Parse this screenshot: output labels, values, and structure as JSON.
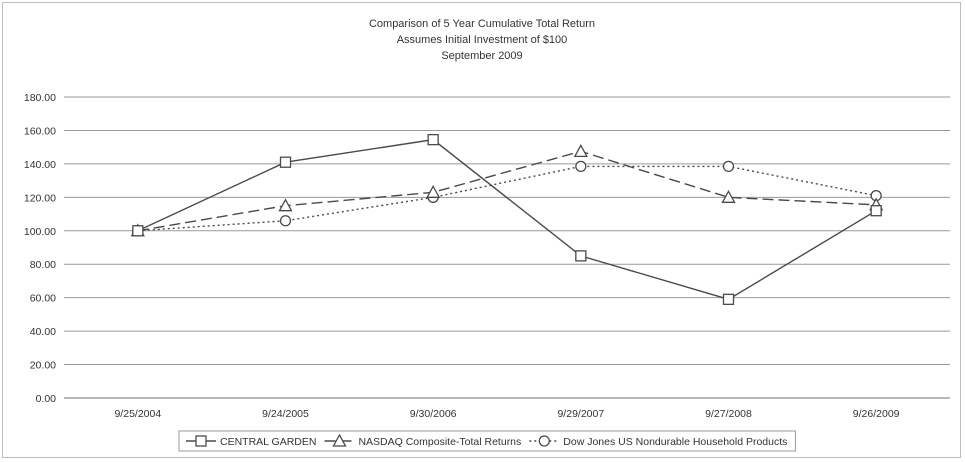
{
  "chart_data": {
    "type": "line",
    "title": [
      "Comparison of 5 Year Cumulative Total Return",
      "Assumes Initial Investment of $100",
      "September 2009"
    ],
    "categories": [
      "9/25/2004",
      "9/24/2005",
      "9/30/2006",
      "9/29/2007",
      "9/27/2008",
      "9/26/2009"
    ],
    "yticks": [
      "0.00",
      "20.00",
      "40.00",
      "60.00",
      "80.00",
      "100.00",
      "120.00",
      "140.00",
      "160.00",
      "180.00"
    ],
    "ylim": [
      0,
      180
    ],
    "grid": true,
    "legend_position": "bottom",
    "series": [
      {
        "name": "CENTRAL GARDEN",
        "marker": "square",
        "dash": "solid",
        "values": [
          100.0,
          141.0,
          154.5,
          85.0,
          59.0,
          112.0
        ]
      },
      {
        "name": "NASDAQ Composite-Total Returns",
        "marker": "triangle",
        "dash": "dashed",
        "values": [
          100.0,
          115.0,
          123.0,
          147.5,
          120.0,
          115.5
        ]
      },
      {
        "name": "Dow Jones US Nondurable Household Products",
        "marker": "circle",
        "dash": "dotted",
        "values": [
          100.0,
          106.0,
          120.0,
          138.5,
          138.5,
          121.0
        ]
      }
    ],
    "colors": {
      "line": "#4a4a4a",
      "grid": "#9a9a9a",
      "text": "#333333"
    }
  }
}
